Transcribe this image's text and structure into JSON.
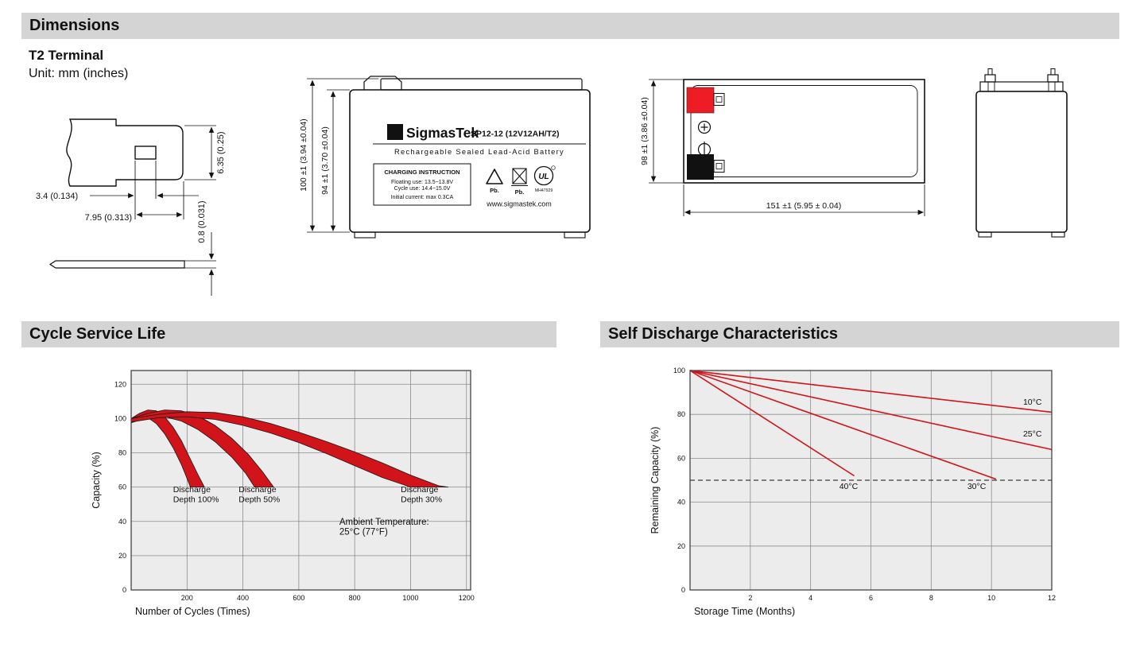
{
  "sections": {
    "dimensions": "Dimensions",
    "cycle": "Cycle Service Life",
    "self_discharge": "Self Discharge Characteristics"
  },
  "dimensions": {
    "terminal_type": "T2 Terminal",
    "unit": "Unit: mm (inches)",
    "terminal": {
      "height": "6.35 (0.25)",
      "hole": "3.4 (0.134)",
      "width": "7.95 (0.313)",
      "thickness": "0.8 (0.031)"
    },
    "front_view": {
      "brand_glyph": "Σ",
      "brand": "SigmasTek",
      "model": "SP12-12 (12V12AH/T2)",
      "type_line": "Rechargeable Sealed Lead-Acid Battery",
      "charging": {
        "title": "CHARGING INSTRUCTION",
        "line1": "Floating use: 13.5~13.8V",
        "line2": "Cycle use: 14.4~15.0V",
        "line3": "Initial current: max 0.3CA"
      },
      "pb1": "Pb.",
      "pb2": "Pb.",
      "ul_text": "UL",
      "ul_code": "MH47929",
      "website": "www.sigmastek.com",
      "height_total": "100 ±1 (3.94 ±0.04)",
      "height_body": "94 ±1 (3.70 ±0.04)"
    },
    "top_view": {
      "width": "98 ±1 (3.86 ±0.04)",
      "length": "151 ±1 (5.95 ± 0.04)"
    }
  },
  "chart_data": [
    {
      "id": "cycle-life-chart",
      "type": "area",
      "title": "Cycle Service Life",
      "xlabel": "Number of Cycles (Times)",
      "ylabel": "Capacity (%)",
      "xlim": [
        0,
        1215
      ],
      "ylim": [
        0,
        128
      ],
      "xticks": [
        200,
        400,
        600,
        800,
        1000,
        1200
      ],
      "yticks": [
        0,
        20,
        40,
        60,
        80,
        100,
        120
      ],
      "grid": true,
      "legend": "none",
      "plot": {
        "l": 70,
        "t": 21,
        "r": 497,
        "b": 297
      },
      "band_color": "#d0141a",
      "bands": [
        {
          "name": "Discharge Depth 100%",
          "upper": [
            [
              0,
              100
            ],
            [
              30,
              103
            ],
            [
              60,
              105
            ],
            [
              90,
              104.5
            ],
            [
              120,
              101
            ],
            [
              150,
              95
            ],
            [
              180,
              87
            ],
            [
              210,
              77
            ],
            [
              240,
              67
            ],
            [
              262,
              60
            ]
          ],
          "lower": [
            [
              0,
              97.5
            ],
            [
              30,
              100
            ],
            [
              60,
              100.5
            ],
            [
              90,
              97
            ],
            [
              120,
              91
            ],
            [
              150,
              83
            ],
            [
              180,
              73
            ],
            [
              200,
              65
            ],
            [
              212,
              60
            ]
          ]
        },
        {
          "name": "Discharge Depth 50%",
          "upper": [
            [
              0,
              100
            ],
            [
              60,
              103
            ],
            [
              120,
              105
            ],
            [
              180,
              104.5
            ],
            [
              240,
              101.5
            ],
            [
              300,
              96
            ],
            [
              360,
              88.5
            ],
            [
              420,
              79
            ],
            [
              470,
              69
            ],
            [
              510,
              60
            ]
          ],
          "lower": [
            [
              0,
              97.5
            ],
            [
              60,
              100.5
            ],
            [
              120,
              101
            ],
            [
              180,
              98.5
            ],
            [
              240,
              93.5
            ],
            [
              300,
              86.5
            ],
            [
              360,
              77.5
            ],
            [
              410,
              68
            ],
            [
              442,
              60
            ]
          ]
        },
        {
          "name": "Discharge Depth 30%",
          "upper": [
            [
              0,
              100
            ],
            [
              100,
              102.5
            ],
            [
              200,
              104
            ],
            [
              300,
              103.5
            ],
            [
              400,
              101
            ],
            [
              500,
              97
            ],
            [
              600,
              92
            ],
            [
              700,
              86.5
            ],
            [
              800,
              80.5
            ],
            [
              900,
              74
            ],
            [
              1000,
              67
            ],
            [
              1100,
              60.8
            ],
            [
              1135,
              60
            ]
          ],
          "lower": [
            [
              0,
              98
            ],
            [
              100,
              100.5
            ],
            [
              200,
              101
            ],
            [
              300,
              99.5
            ],
            [
              400,
              96
            ],
            [
              500,
              91.5
            ],
            [
              600,
              86
            ],
            [
              700,
              79.5
            ],
            [
              800,
              72.5
            ],
            [
              900,
              65.5
            ],
            [
              1000,
              60
            ]
          ]
        }
      ],
      "labels": [
        {
          "lines": [
            "Discharge",
            "Depth 100%"
          ],
          "x": 150,
          "y": 57
        },
        {
          "lines": [
            "Discharge",
            "Depth 50%"
          ],
          "x": 385,
          "y": 57
        },
        {
          "lines": [
            "Discharge",
            "Depth 30%"
          ],
          "x": 965,
          "y": 57
        },
        {
          "lines": [
            "Ambient Temperature:",
            "25°C (77°F)"
          ],
          "x": 745,
          "y": 38,
          "size": 11.5
        }
      ]
    },
    {
      "id": "self-discharge-chart",
      "type": "line",
      "title": "Self Discharge Characteristics",
      "xlabel": "Storage Time (Months)",
      "ylabel": "Remaining Capacity (%)",
      "xlim": [
        0,
        12
      ],
      "ylim": [
        0,
        100
      ],
      "xticks": [
        2,
        4,
        6,
        8,
        10,
        12
      ],
      "yticks": [
        0,
        20,
        40,
        60,
        80,
        100
      ],
      "grid": true,
      "legend": "inline-labels",
      "plot": {
        "l": 78,
        "t": 21,
        "r": 533,
        "b": 297
      },
      "line_color": "#d0141a",
      "series": [
        {
          "name": "10°C",
          "points": [
            [
              0,
              100
            ],
            [
              12,
              81
            ]
          ]
        },
        {
          "name": "25°C",
          "points": [
            [
              0,
              100
            ],
            [
              12,
              64
            ]
          ]
        },
        {
          "name": "30°C",
          "points": [
            [
              0,
              100
            ],
            [
              10.15,
              50.5
            ]
          ]
        },
        {
          "name": "40°C",
          "points": [
            [
              0,
              100
            ],
            [
              5.45,
              52
            ]
          ]
        }
      ],
      "reference_line": {
        "y": 50,
        "style": "dashed"
      },
      "labels": [
        {
          "lines": [
            "10°C"
          ],
          "x": 11.05,
          "y": 84.5
        },
        {
          "lines": [
            "25°C"
          ],
          "x": 11.05,
          "y": 70
        },
        {
          "lines": [
            "30°C"
          ],
          "x": 9.2,
          "y": 46
        },
        {
          "lines": [
            "40°C"
          ],
          "x": 4.95,
          "y": 46
        }
      ]
    }
  ]
}
